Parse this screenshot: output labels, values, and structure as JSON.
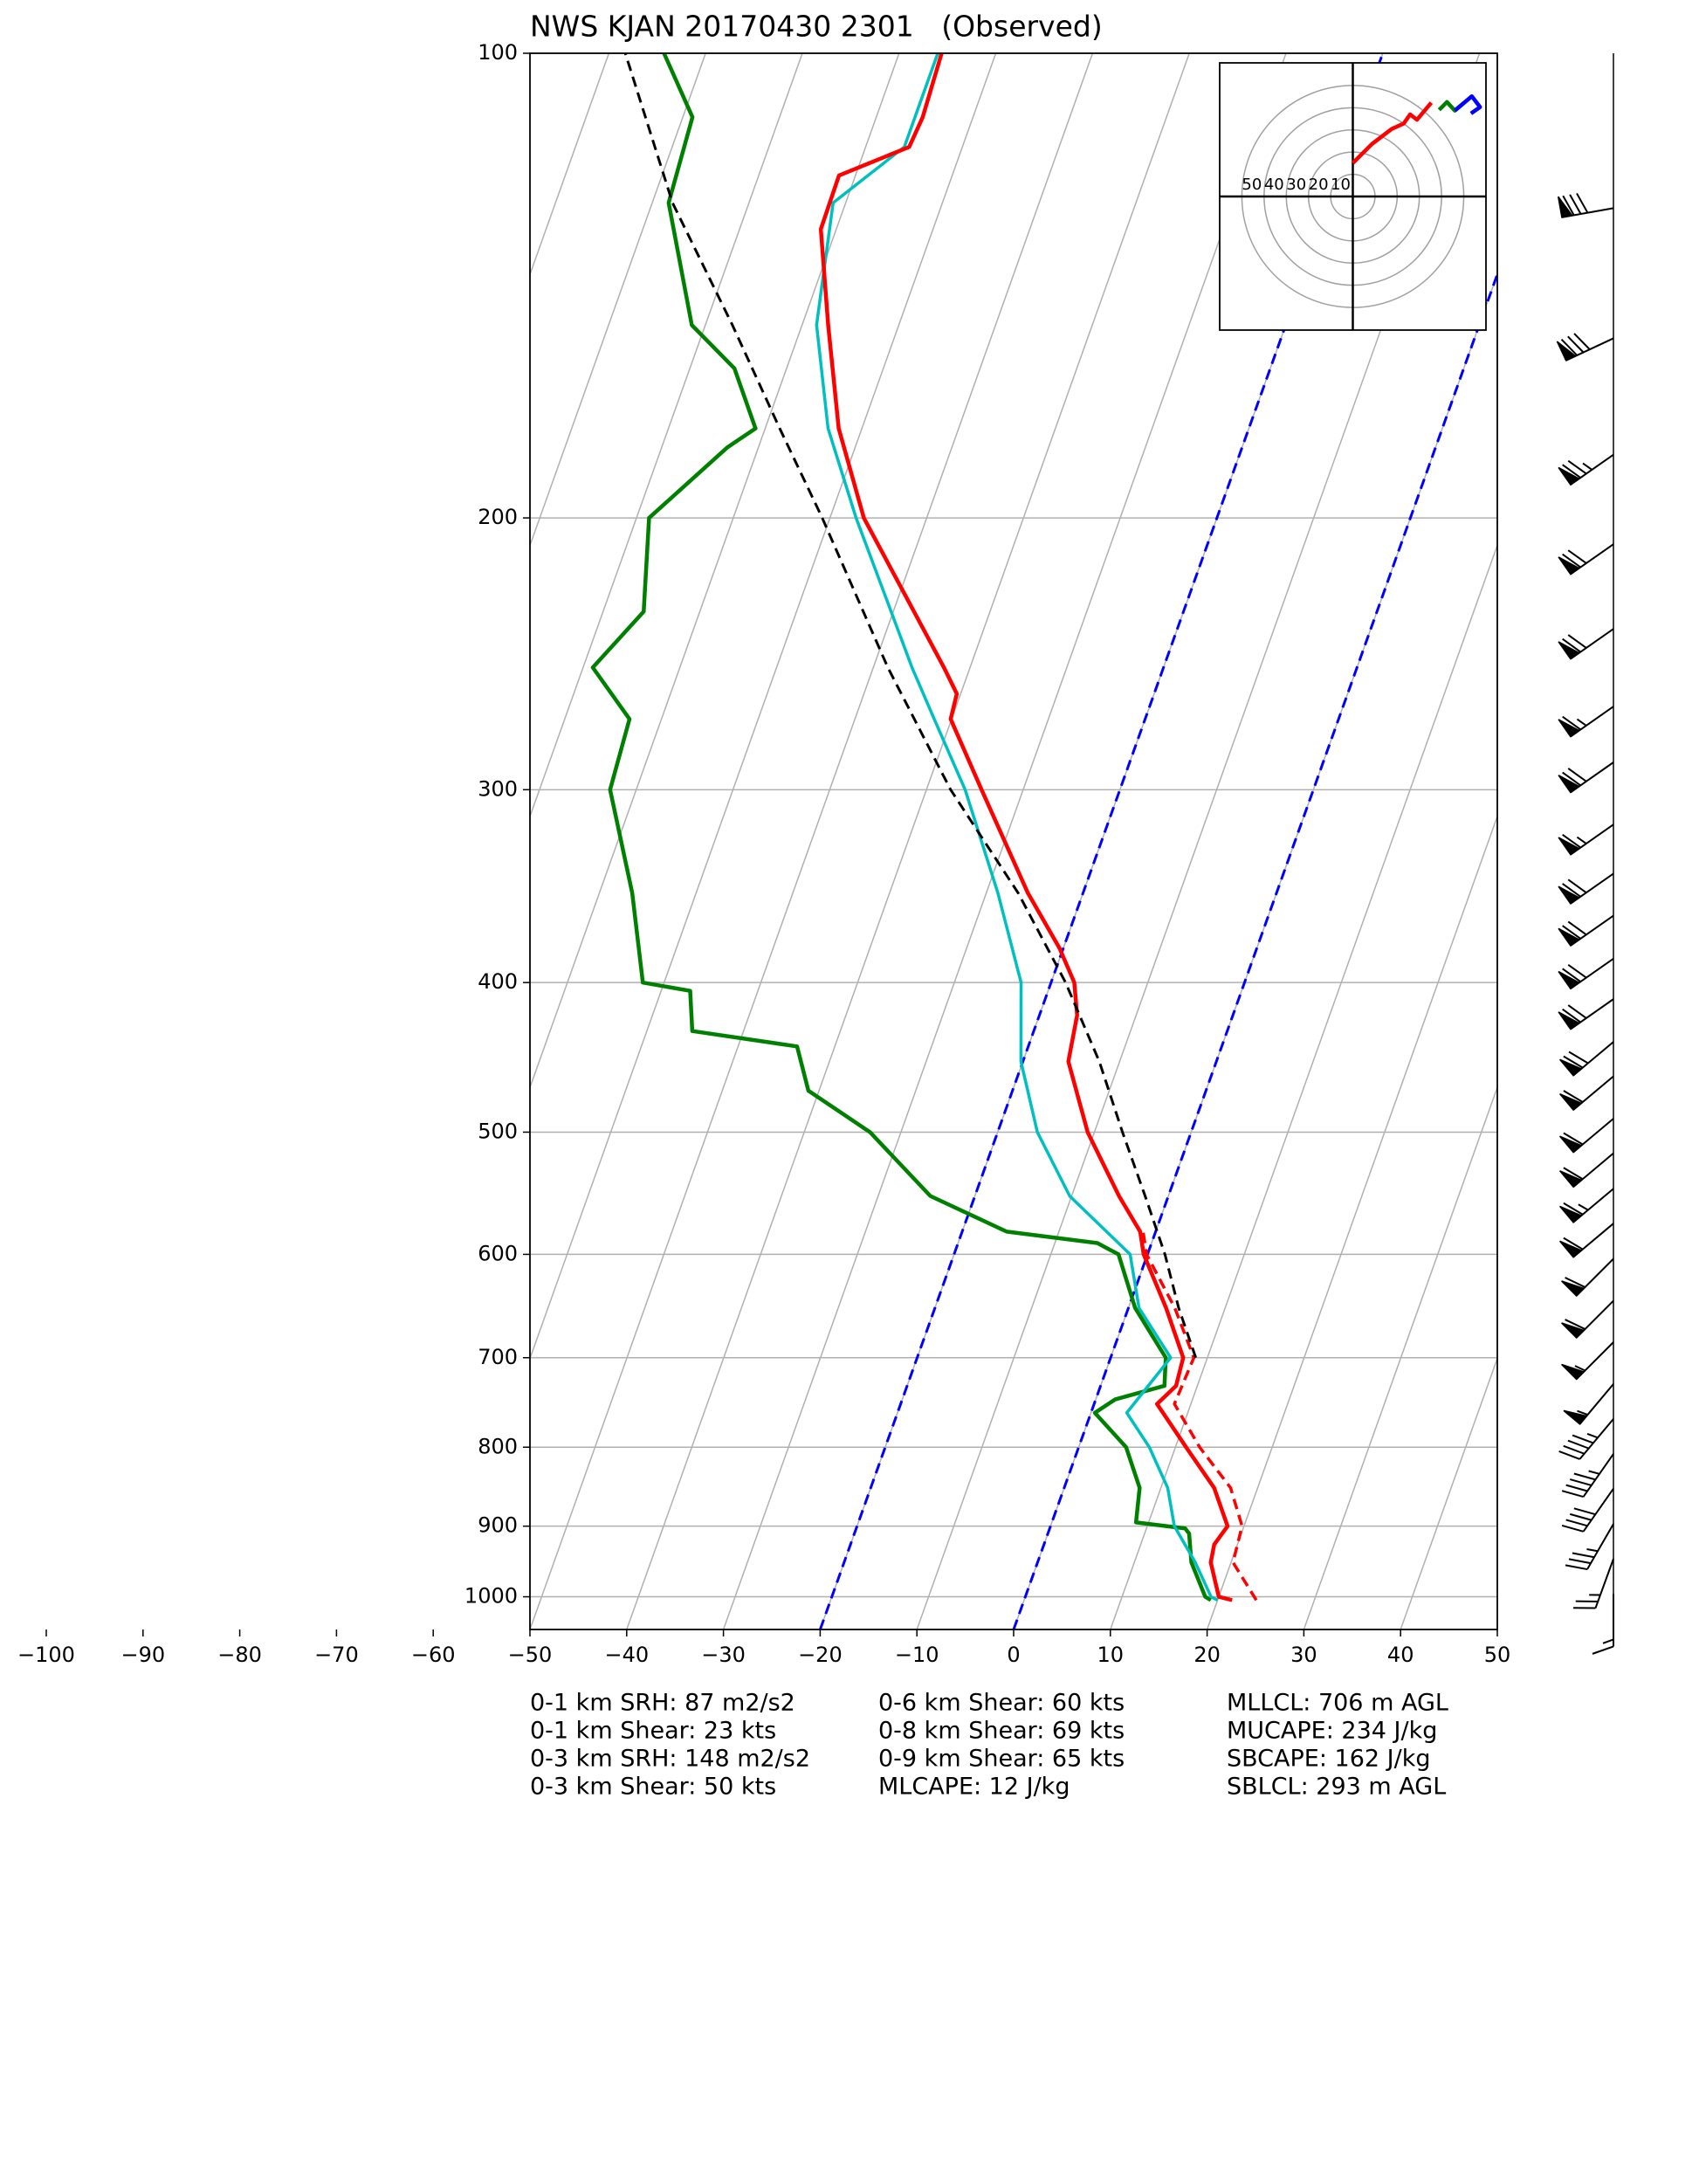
{
  "chart_data": {
    "type": "skewt",
    "title": "NWS KJAN 20170430 2301   (Observed)",
    "xlim": [
      -50,
      50
    ],
    "xticks": [
      {
        "value": -100,
        "label": "−100"
      },
      {
        "value": -90,
        "label": "−90"
      },
      {
        "value": -80,
        "label": "−80"
      },
      {
        "value": -70,
        "label": "−70"
      },
      {
        "value": -60,
        "label": "−60"
      },
      {
        "value": -50,
        "label": "−50"
      },
      {
        "value": -40,
        "label": "−40"
      },
      {
        "value": -30,
        "label": "−30"
      },
      {
        "value": -20,
        "label": "−20"
      },
      {
        "value": -10,
        "label": "−10"
      },
      0,
      10,
      20,
      30,
      40,
      50
    ],
    "ylim": [
      1050,
      100
    ],
    "yscale": "log",
    "yticks": [
      100,
      200,
      300,
      400,
      500,
      600,
      700,
      800,
      900,
      1000
    ],
    "grid": true,
    "dashed_isotherms": {
      "values": [
        -20,
        0
      ],
      "color": "#0000ff"
    },
    "series": [
      {
        "color": "#ff0000",
        "linestyle": "dashed",
        "linewidth": 3.5,
        "pressure": [
          1005,
          950,
          900,
          850,
          800,
          750,
          700,
          650,
          600,
          580
        ],
        "values": [
          24.0,
          20.2,
          19.8,
          17.2,
          12.5,
          8.3,
          8.6,
          4.8,
          -0.1,
          -1.3
        ]
      },
      {
        "color": "#008000",
        "linestyle": "solid",
        "linewidth": 4.5,
        "pressure": [
          1005,
          1000,
          950,
          910,
          903,
          895,
          850,
          800,
          760,
          745,
          730,
          700,
          650,
          600,
          590,
          580,
          550,
          500,
          470,
          440,
          430,
          405,
          400,
          350,
          300,
          270,
          250,
          230,
          200,
          180,
          175,
          160,
          150,
          125,
          110,
          100
        ],
        "values": [
          19.3,
          18.6,
          15.9,
          14.6,
          14.0,
          8.7,
          7.8,
          4.9,
          0.4,
          2.0,
          6.6,
          5.7,
          0.7,
          -3.0,
          -5.6,
          -15.4,
          -24.6,
          -33.2,
          -41.1,
          -43.9,
          -55.3,
          -57.0,
          -62.2,
          -66.6,
          -72.7,
          -73.3,
          -79.0,
          -75.8,
          -78.7,
          -73.2,
          -71.0,
          -75.4,
          -81.4,
          -88.3,
          -89.0,
          -94.3
        ]
      },
      {
        "color": "#00bfbf",
        "linestyle": "solid",
        "linewidth": 3.5,
        "pressure": [
          1005,
          1000,
          950,
          900,
          850,
          800,
          760,
          700,
          650,
          600,
          550,
          500,
          450,
          400,
          350,
          300,
          270,
          250,
          200,
          175,
          150,
          125,
          115,
          100
        ],
        "values": [
          20.0,
          19.2,
          16.3,
          12.8,
          10.7,
          7.3,
          3.7,
          6.2,
          1.1,
          -1.8,
          -10.2,
          -15.9,
          -20.2,
          -23.1,
          -28.8,
          -36.0,
          -41.8,
          -46.0,
          -57.3,
          -63.5,
          -68.5,
          -71.3,
          -66.0,
          -66.0
        ]
      },
      {
        "color": "#ff0000",
        "linestyle": "solid",
        "linewidth": 4.5,
        "pressure": [
          1005,
          1000,
          950,
          925,
          900,
          850,
          800,
          750,
          730,
          700,
          650,
          600,
          580,
          550,
          500,
          450,
          420,
          400,
          380,
          350,
          300,
          270,
          260,
          250,
          200,
          175,
          150,
          130,
          120,
          115,
          110,
          100
        ],
        "values": [
          21.5,
          20.0,
          17.9,
          17.6,
          18.3,
          15.5,
          11.1,
          6.5,
          7.8,
          7.5,
          3.9,
          -0.4,
          -1.6,
          -5.1,
          -10.7,
          -15.3,
          -16.1,
          -17.6,
          -20.4,
          -25.7,
          -34.3,
          -40.1,
          -40.4,
          -42.7,
          -56.5,
          -62.4,
          -67.3,
          -71.6,
          -71.7,
          -65.5,
          -65.2,
          -65.6
        ]
      },
      {
        "color": "#000000",
        "linestyle": "dashed",
        "linewidth": 3,
        "pressure": [
          700,
          650,
          600,
          550,
          500,
          450,
          400,
          350,
          300,
          250,
          200,
          175,
          150,
          125,
          100
        ],
        "values": [
          8.8,
          5.2,
          1.8,
          -2.4,
          -7.1,
          -12.1,
          -18.5,
          -26.7,
          -37.5,
          -48.5,
          -60.8,
          -68.5,
          -77.2,
          -87.9,
          -98.3
        ]
      }
    ],
    "wind": {
      "pressure": [
        996,
        945,
        897,
        851,
        808,
        767,
        728,
        684,
        643,
        604,
        573,
        544,
        516,
        490,
        460,
        437,
        410,
        386,
        362,
        340,
        316,
        288,
        265,
        236,
        208,
        182,
        153,
        126
      ],
      "speed": [
        15,
        25,
        35,
        40,
        45,
        45,
        55,
        55,
        60,
        60,
        60,
        65,
        60,
        60,
        60,
        70,
        70,
        70,
        70,
        70,
        65,
        70,
        65,
        70,
        70,
        75,
        80,
        80
      ],
      "direction": [
        180,
        200,
        210,
        215,
        215,
        220,
        220,
        225,
        225,
        225,
        230,
        230,
        230,
        230,
        230,
        230,
        235,
        235,
        235,
        235,
        235,
        235,
        235,
        235,
        235,
        235,
        245,
        260
      ]
    },
    "hodograph": {
      "xlim": [
        -60,
        60
      ],
      "ylim": [
        -60,
        60
      ],
      "rings": [
        50,
        40,
        30,
        20,
        10
      ],
      "colors": [
        "#ff0000",
        "#008000",
        "#0000ff"
      ],
      "layer_bounds": [
        1050,
        700,
        470,
        300
      ]
    },
    "annotations": [
      [
        "0-1 km SRH: 87 m2/s2",
        "0-1 km Shear: 23 kts",
        "0-3 km SRH: 148 m2/s2",
        "0-3 km Shear: 50 kts"
      ],
      [
        "0-6 km Shear: 60 kts",
        "0-8 km Shear: 69 kts",
        "0-9 km Shear: 65 kts",
        "MLCAPE: 12 J/kg"
      ],
      [
        "MLLCL: 706 m AGL",
        "MUCAPE: 234 J/kg",
        "SBCAPE: 162 J/kg",
        "SBLCL: 293 m AGL"
      ]
    ]
  }
}
